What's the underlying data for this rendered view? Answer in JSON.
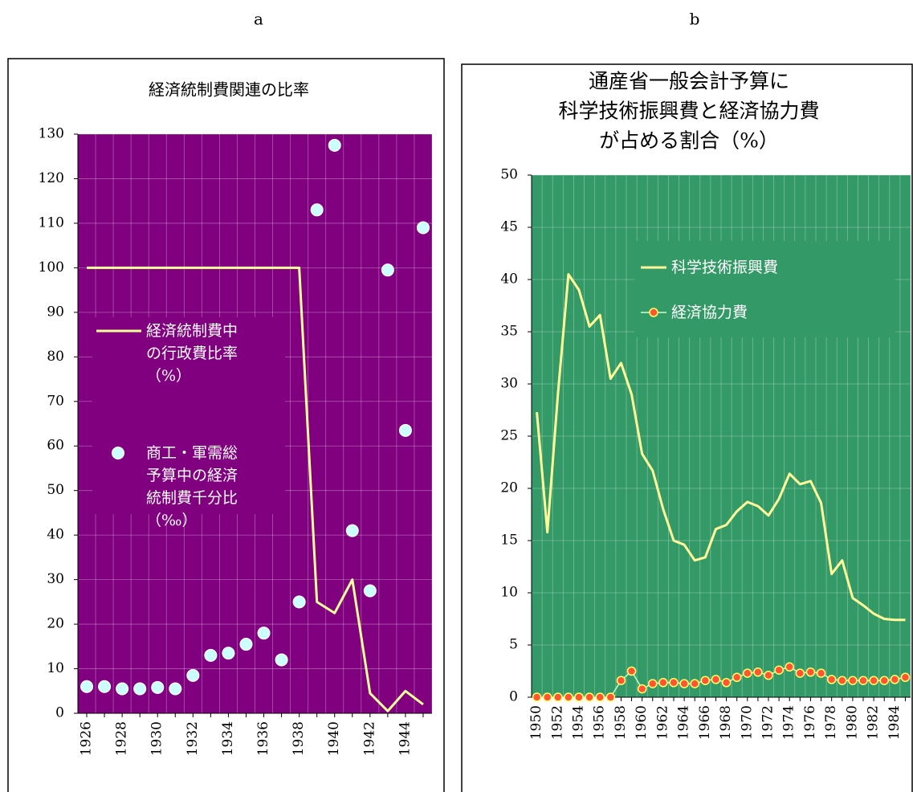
{
  "chart_data": [
    {
      "type": "line",
      "label": "a",
      "title": "経済統制費関連の比率",
      "categories": [
        1926,
        null,
        1928,
        null,
        1930,
        null,
        1932,
        null,
        1934,
        null,
        1936,
        null,
        1938,
        null,
        1940,
        null,
        1942,
        null,
        1944,
        null
      ],
      "ylim": [
        0,
        130
      ],
      "yticks": [
        0,
        10,
        20,
        30,
        40,
        50,
        60,
        70,
        80,
        90,
        100,
        110,
        120,
        130
      ],
      "background": "#800080",
      "grid": true,
      "series": [
        {
          "name": "経済統制費中\nの行政費比率\n（%）",
          "style": "line",
          "color": "#ffff99",
          "values": [
            100,
            100,
            100,
            100,
            100,
            100,
            100,
            100,
            100,
            100,
            100,
            100,
            100,
            25,
            22.5,
            30,
            4.5,
            0.5,
            5,
            2
          ]
        },
        {
          "name": "商工・軍需総\n予算中の経済\n統制費千分比\n（‰）",
          "style": "points",
          "color": "#ccffff",
          "values": [
            6,
            6,
            5.5,
            5.5,
            5.8,
            5.5,
            8.5,
            13,
            13.5,
            15.5,
            18,
            12,
            25,
            113,
            127.5,
            41,
            27.5,
            99.5,
            63.5,
            109
          ]
        }
      ]
    },
    {
      "type": "line",
      "label": "b",
      "title": [
        "通産省一般会計予算に",
        "科学技術振興費と経済協力費",
        "が占める割合（%）"
      ],
      "categories": [
        1950,
        null,
        1952,
        null,
        1954,
        null,
        1956,
        null,
        1958,
        null,
        1960,
        null,
        1962,
        null,
        1964,
        null,
        1966,
        null,
        1968,
        null,
        1970,
        null,
        1972,
        null,
        1974,
        null,
        1976,
        null,
        1978,
        null,
        1980,
        null,
        1982,
        null,
        1984,
        null
      ],
      "ylim": [
        0,
        50
      ],
      "yticks": [
        0,
        5,
        10,
        15,
        20,
        25,
        30,
        35,
        40,
        45,
        50
      ],
      "background": "#339966",
      "grid": true,
      "series": [
        {
          "name": "科学技術振興費",
          "style": "line",
          "color": "#ffff99",
          "values": [
            27.3,
            15.8,
            29,
            40.5,
            39,
            35.5,
            36.6,
            30.5,
            32,
            29,
            23.3,
            21.7,
            18,
            15,
            14.6,
            13.1,
            13.4,
            16.1,
            16.5,
            17.8,
            18.7,
            18.3,
            17.4,
            19,
            21.4,
            20.4,
            20.7,
            18.6,
            11.8,
            13.1,
            9.5,
            8.8,
            8,
            7.5,
            7.4,
            7.4
          ]
        },
        {
          "name": "経済協力費",
          "style": "line-markers",
          "color": "#ff5533",
          "line_color": "#ccffcc",
          "values": [
            0,
            0,
            0,
            0,
            0,
            0,
            0,
            0,
            1.6,
            2.5,
            0.8,
            1.3,
            1.4,
            1.4,
            1.3,
            1.3,
            1.6,
            1.7,
            1.4,
            1.9,
            2.3,
            2.4,
            2.1,
            2.6,
            2.9,
            2.3,
            2.4,
            2.3,
            1.7,
            1.6,
            1.6,
            1.6,
            1.6,
            1.6,
            1.7,
            1.9
          ]
        }
      ]
    }
  ]
}
